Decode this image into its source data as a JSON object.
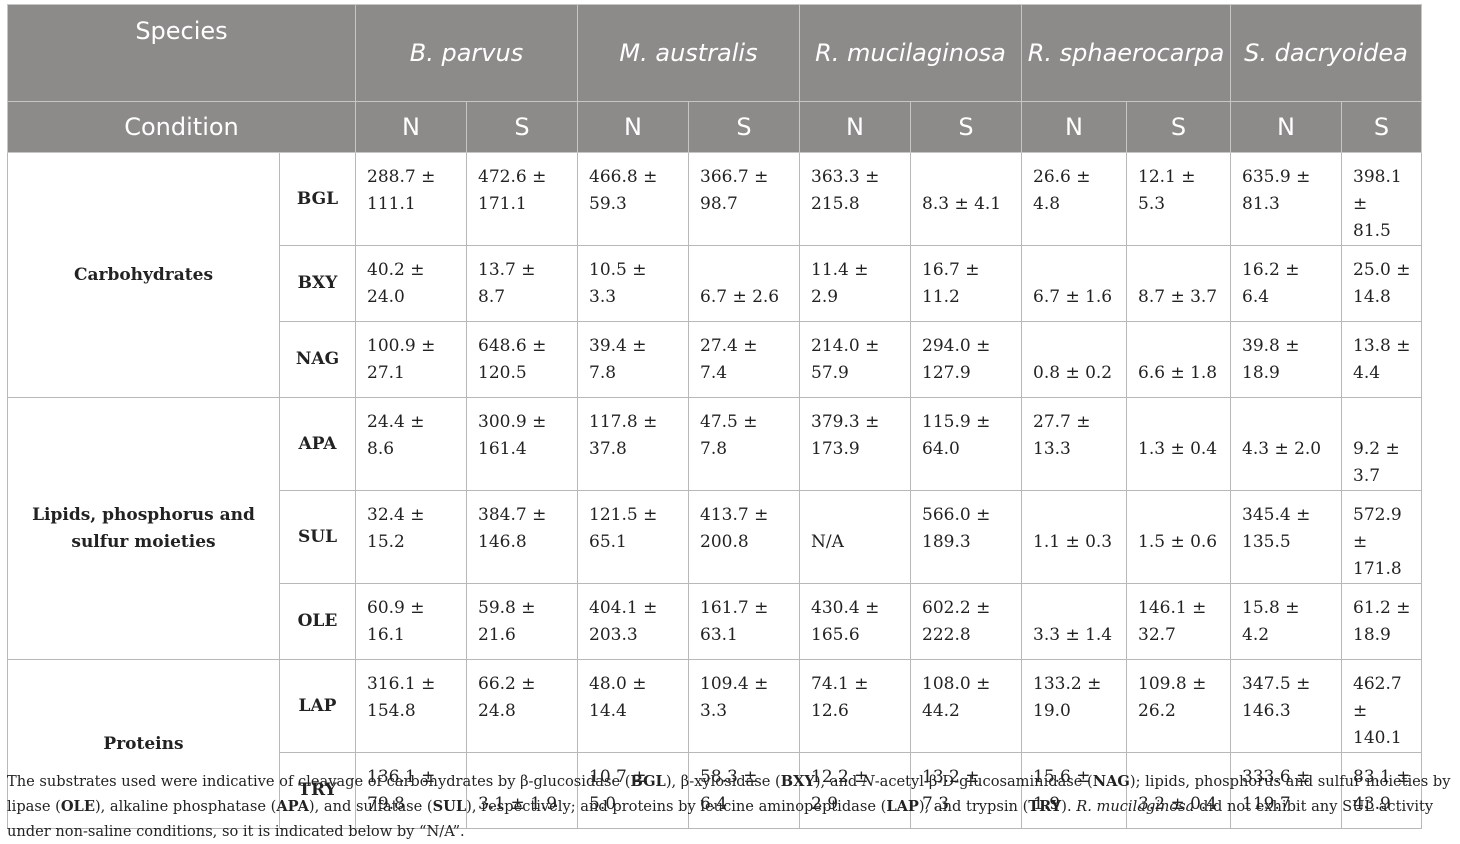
{
  "header": {
    "species_label": "Species",
    "condition_label": "Condition",
    "species": [
      {
        "name": "B. parvus",
        "cond": [
          "N",
          "S"
        ]
      },
      {
        "name": "M. australis",
        "cond": [
          "N",
          "S"
        ]
      },
      {
        "name": "R. mucilaginosa",
        "cond": [
          "N",
          "S"
        ]
      },
      {
        "name": "R. sphaerocarpa",
        "cond": [
          "N",
          "S"
        ]
      },
      {
        "name": "S. dacryoidea",
        "cond": [
          "N",
          "S"
        ]
      }
    ]
  },
  "groups": [
    {
      "name": "Carbohydrates",
      "rows": [
        {
          "sub": "BGL",
          "values": [
            [
              "288.7 ±",
              "111.1"
            ],
            [
              "472.6 ±",
              "171.1"
            ],
            [
              "466.8 ±",
              "59.3"
            ],
            [
              "366.7 ±",
              "98.7"
            ],
            [
              "363.3 ±",
              "215.8"
            ],
            [
              "8.3 ± 4.1"
            ],
            [
              "26.6 ±",
              "4.8"
            ],
            [
              "12.1 ±",
              "5.3"
            ],
            [
              "635.9 ±",
              "81.3"
            ],
            [
              "398.1 ±",
              "81.5"
            ]
          ]
        },
        {
          "sub": "BXY",
          "values": [
            [
              "40.2 ±",
              "24.0"
            ],
            [
              "13.7 ±",
              "8.7"
            ],
            [
              "10.5 ±",
              "3.3"
            ],
            [
              "6.7 ± 2.6"
            ],
            [
              "11.4 ±",
              "2.9"
            ],
            [
              "16.7 ±",
              "11.2"
            ],
            [
              "6.7 ± 1.6"
            ],
            [
              "8.7 ± 3.7"
            ],
            [
              "16.2 ±",
              "6.4"
            ],
            [
              "25.0 ±",
              "14.8"
            ]
          ]
        },
        {
          "sub": "NAG",
          "values": [
            [
              "100.9 ±",
              "27.1"
            ],
            [
              "648.6 ±",
              "120.5"
            ],
            [
              "39.4 ±",
              "7.8"
            ],
            [
              "27.4 ±",
              "7.4"
            ],
            [
              "214.0 ±",
              "57.9"
            ],
            [
              "294.0 ±",
              "127.9"
            ],
            [
              "0.8 ± 0.2"
            ],
            [
              "6.6 ± 1.8"
            ],
            [
              "39.8 ±",
              "18.9"
            ],
            [
              "13.8 ±",
              "4.4"
            ]
          ]
        }
      ]
    },
    {
      "name": "Lipids, phosphorus and sulfur moieties",
      "rows": [
        {
          "sub": "APA",
          "values": [
            [
              "24.4 ±",
              "8.6"
            ],
            [
              "300.9 ±",
              "161.4"
            ],
            [
              "117.8 ±",
              "37.8"
            ],
            [
              "47.5 ±",
              "7.8"
            ],
            [
              "379.3 ±",
              "173.9"
            ],
            [
              "115.9 ±",
              "64.0"
            ],
            [
              "27.7 ±",
              "13.3"
            ],
            [
              "1.3 ± 0.4"
            ],
            [
              "4.3 ± 2.0"
            ],
            [
              "9.2 ± 3.7"
            ]
          ]
        },
        {
          "sub": "SUL",
          "values": [
            [
              "32.4 ±",
              "15.2"
            ],
            [
              "384.7 ±",
              "146.8"
            ],
            [
              "121.5 ±",
              "65.1"
            ],
            [
              "413.7 ±",
              "200.8"
            ],
            [
              "N/A"
            ],
            [
              "566.0 ±",
              "189.3"
            ],
            [
              "1.1 ± 0.3"
            ],
            [
              "1.5 ± 0.6"
            ],
            [
              "345.4 ±",
              "135.5"
            ],
            [
              "572.9 ±",
              "171.8"
            ]
          ]
        },
        {
          "sub": "OLE",
          "values": [
            [
              "60.9 ±",
              "16.1"
            ],
            [
              "59.8 ±",
              "21.6"
            ],
            [
              "404.1 ±",
              "203.3"
            ],
            [
              "161.7 ±",
              "63.1"
            ],
            [
              "430.4 ±",
              "165.6"
            ],
            [
              "602.2 ±",
              "222.8"
            ],
            [
              "3.3 ± 1.4"
            ],
            [
              "146.1 ±",
              "32.7"
            ],
            [
              "15.8 ±",
              "4.2"
            ],
            [
              "61.2 ±",
              "18.9"
            ]
          ]
        }
      ]
    },
    {
      "name": "Proteins",
      "rows": [
        {
          "sub": "LAP",
          "values": [
            [
              "316.1 ±",
              "154.8"
            ],
            [
              "66.2 ±",
              "24.8"
            ],
            [
              "48.0 ±",
              "14.4"
            ],
            [
              "109.4 ±",
              "3.3"
            ],
            [
              "74.1 ±",
              "12.6"
            ],
            [
              "108.0 ±",
              "44.2"
            ],
            [
              "133.2 ±",
              "19.0"
            ],
            [
              "109.8 ±",
              "26.2"
            ],
            [
              "347.5 ±",
              "146.3"
            ],
            [
              "462.7 ±",
              "140.1"
            ]
          ]
        },
        {
          "sub": "TRY",
          "values": [
            [
              "136.1 ±",
              "79.8"
            ],
            [
              "3.1 ± 1.9"
            ],
            [
              "10.7 ±",
              "5.0"
            ],
            [
              "58.3 ±",
              "6.4"
            ],
            [
              "12.2 ±",
              "2.9"
            ],
            [
              "13.2 ±",
              "7.3"
            ],
            [
              "15.6 ±",
              "1.9"
            ],
            [
              "3.2 ± 0.4"
            ],
            [
              "333.6 ±",
              "119.7"
            ],
            [
              "83.1 ±",
              "43.9"
            ]
          ]
        }
      ]
    }
  ],
  "caption": [
    {
      "t": "The substrates used were indicative of cleavage of carbohydrates by β-glucosidase ("
    },
    {
      "t": "BGL",
      "b": true
    },
    {
      "t": "), β-xylosidase ("
    },
    {
      "t": "BXY",
      "b": true
    },
    {
      "t": "), and "
    },
    {
      "t": "N",
      "i": true
    },
    {
      "t": "-acetyl-β-D-glucosaminidase ("
    },
    {
      "t": "NAG",
      "b": true
    },
    {
      "t": "); lipids, phosphorus and sulfur moieties by lipase ("
    },
    {
      "t": "OLE",
      "b": true
    },
    {
      "t": "), alkaline phosphatase ("
    },
    {
      "t": "APA",
      "b": true
    },
    {
      "t": "), and sulfatase ("
    },
    {
      "t": "SUL",
      "b": true
    },
    {
      "t": "), respectively; and proteins by leucine aminopeptidase ("
    },
    {
      "t": "LAP",
      "b": true
    },
    {
      "t": "), and trypsin ("
    },
    {
      "t": "TRY",
      "b": true
    },
    {
      "t": "). "
    },
    {
      "t": "R. mucilaginosa",
      "i": true
    },
    {
      "t": " did not exhibit any SUL activity under non-saline conditions, so it is indicated below by “N/A”."
    }
  ]
}
